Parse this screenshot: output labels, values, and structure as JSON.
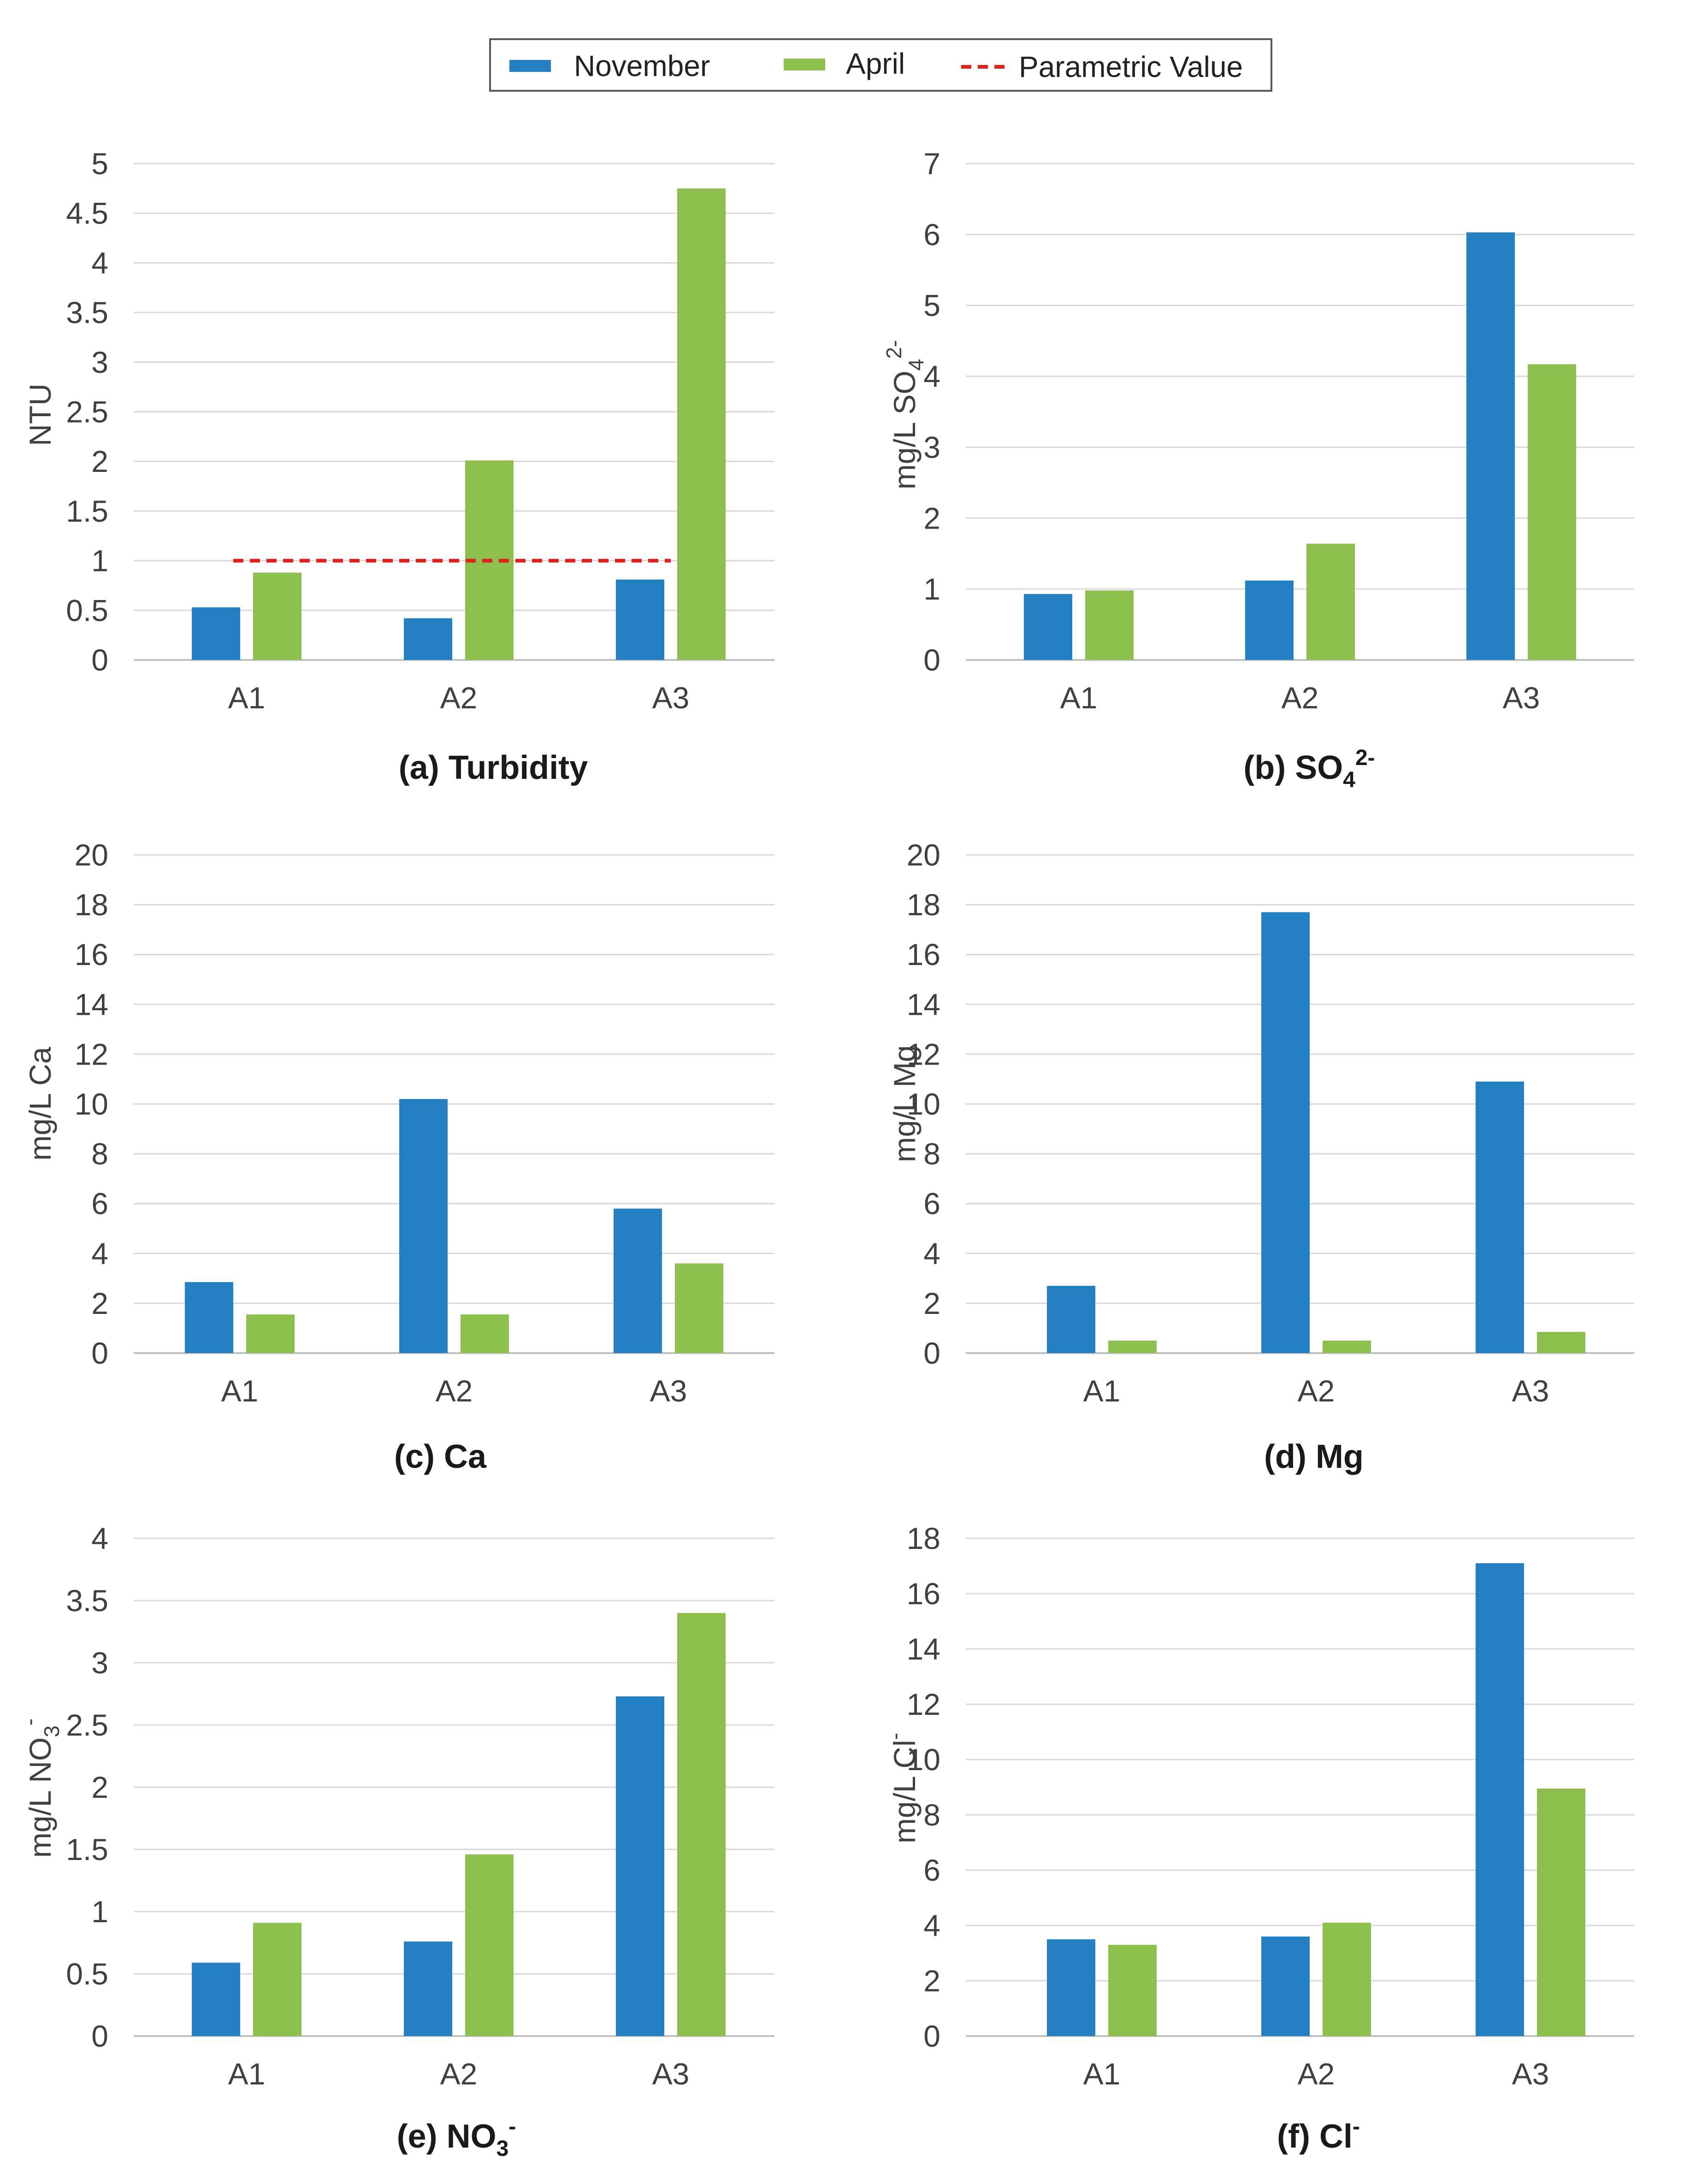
{
  "legend": {
    "november": "November",
    "april": "April",
    "parametric": "Parametric Value"
  },
  "colors": {
    "november": "#2580c3",
    "april": "#8cbf4e",
    "parametric": "#e0201b"
  },
  "chart_data": [
    {
      "id": "a",
      "type": "bar",
      "caption": {
        "prefix": "(a)  Turbidity",
        "main": "",
        "sub": "",
        "sup": ""
      },
      "ylabel": {
        "main": "NTU",
        "sub": "",
        "sup": ""
      },
      "categories": [
        "A1",
        "A2",
        "A3"
      ],
      "ylim": [
        0,
        5
      ],
      "ticks": [
        "0",
        "0.5",
        "1",
        "1.5",
        "2",
        "2.5",
        "3",
        "3.5",
        "4",
        "4.5",
        "5"
      ],
      "series": [
        {
          "name": "November",
          "values": [
            0.53,
            0.42,
            0.81
          ]
        },
        {
          "name": "April",
          "values": [
            0.88,
            2.01,
            4.75
          ]
        }
      ],
      "reference_line": {
        "name": "Parametric Value",
        "value": 1
      }
    },
    {
      "id": "b",
      "type": "bar",
      "caption": {
        "prefix": "(b) SO",
        "main": "",
        "sub": "4",
        "sup": "2-"
      },
      "ylabel": {
        "main": "mg/L SO",
        "sub": "4",
        "sup": "2-"
      },
      "categories": [
        "A1",
        "A2",
        "A3"
      ],
      "ylim": [
        0,
        7
      ],
      "ticks": [
        "0",
        "1",
        "2",
        "3",
        "4",
        "5",
        "6",
        "7"
      ],
      "series": [
        {
          "name": "November",
          "values": [
            0.93,
            1.12,
            6.03
          ]
        },
        {
          "name": "April",
          "values": [
            0.98,
            1.64,
            4.17
          ]
        }
      ]
    },
    {
      "id": "c",
      "type": "bar",
      "caption": {
        "prefix": "(c) Ca",
        "main": "",
        "sub": "",
        "sup": ""
      },
      "ylabel": {
        "main": "mg/L Ca",
        "sub": "",
        "sup": ""
      },
      "categories": [
        "A1",
        "A2",
        "A3"
      ],
      "ylim": [
        0,
        20
      ],
      "ticks": [
        "0",
        "2",
        "4",
        "6",
        "8",
        "10",
        "12",
        "14",
        "16",
        "18",
        "20"
      ],
      "series": [
        {
          "name": "November",
          "values": [
            2.85,
            10.2,
            5.8
          ]
        },
        {
          "name": "April",
          "values": [
            1.55,
            1.55,
            3.6
          ]
        }
      ]
    },
    {
      "id": "d",
      "type": "bar",
      "caption": {
        "prefix": "(d) Mg",
        "main": "",
        "sub": "",
        "sup": ""
      },
      "ylabel": {
        "main": "mg/L Mg",
        "sub": "",
        "sup": ""
      },
      "categories": [
        "A1",
        "A2",
        "A3"
      ],
      "ylim": [
        0,
        20
      ],
      "ticks": [
        "0",
        "2",
        "4",
        "6",
        "8",
        "10",
        "12",
        "14",
        "16",
        "18",
        "20"
      ],
      "series": [
        {
          "name": "November",
          "values": [
            2.7,
            17.7,
            10.9
          ]
        },
        {
          "name": "April",
          "values": [
            0.5,
            0.5,
            0.85
          ]
        }
      ]
    },
    {
      "id": "e",
      "type": "bar",
      "caption": {
        "prefix": "(e) NO",
        "main": "",
        "sub": "3",
        "sup": "-"
      },
      "ylabel": {
        "main": "mg/L NO",
        "sub": "3",
        "sup": "-"
      },
      "categories": [
        "A1",
        "A2",
        "A3"
      ],
      "ylim": [
        0,
        4
      ],
      "ticks": [
        "0",
        "0.5",
        "1",
        "1.5",
        "2",
        "2.5",
        "3",
        "3.5",
        "4"
      ],
      "series": [
        {
          "name": "November",
          "values": [
            0.59,
            0.76,
            2.73
          ]
        },
        {
          "name": "April",
          "values": [
            0.91,
            1.46,
            3.4
          ]
        }
      ]
    },
    {
      "id": "f",
      "type": "bar",
      "caption": {
        "prefix": "(f) Cl",
        "main": "",
        "sub": "",
        "sup": "-"
      },
      "ylabel": {
        "main": "mg/L Cl",
        "sub": "",
        "sup": "-"
      },
      "categories": [
        "A1",
        "A2",
        "A3"
      ],
      "ylim": [
        0,
        18
      ],
      "ticks": [
        "0",
        "2",
        "4",
        "6",
        "8",
        "10",
        "12",
        "14",
        "16",
        "18"
      ],
      "series": [
        {
          "name": "November",
          "values": [
            3.5,
            3.6,
            17.1
          ]
        },
        {
          "name": "April",
          "values": [
            3.3,
            4.1,
            8.95
          ]
        }
      ]
    }
  ]
}
